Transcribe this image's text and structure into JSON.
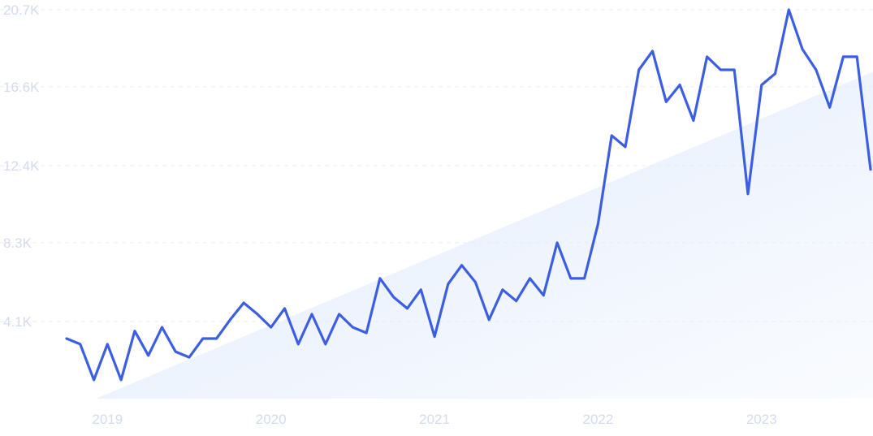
{
  "chart_data": {
    "type": "line",
    "title": "",
    "xlabel": "",
    "ylabel": "",
    "y_ticks": [
      "4.1K",
      "8.3K",
      "12.4K",
      "16.6K",
      "20.7K"
    ],
    "y_tick_values": [
      4100,
      8300,
      12400,
      16600,
      20700
    ],
    "x_ticks": [
      "2019",
      "2020",
      "2021",
      "2022",
      "2023"
    ],
    "ylim": [
      0,
      20700
    ],
    "xlim": [
      "2018-10",
      "2023-09"
    ],
    "grid": true,
    "series": [
      {
        "color": "#3b5fe0",
        "x": [
          "2018-10",
          "2018-11",
          "2018-12",
          "2019-01",
          "2019-02",
          "2019-03",
          "2019-04",
          "2019-05",
          "2019-06",
          "2019-07",
          "2019-08",
          "2019-09",
          "2019-10",
          "2019-11",
          "2019-12",
          "2020-01",
          "2020-02",
          "2020-03",
          "2020-04",
          "2020-05",
          "2020-06",
          "2020-07",
          "2020-08",
          "2020-09",
          "2020-10",
          "2020-11",
          "2020-12",
          "2021-01",
          "2021-02",
          "2021-03",
          "2021-04",
          "2021-05",
          "2021-06",
          "2021-07",
          "2021-08",
          "2021-09",
          "2021-10",
          "2021-11",
          "2021-12",
          "2022-01",
          "2022-02",
          "2022-03",
          "2022-04",
          "2022-05",
          "2022-06",
          "2022-07",
          "2022-08",
          "2022-09",
          "2022-10",
          "2022-11",
          "2022-12",
          "2023-01",
          "2023-02",
          "2023-03",
          "2023-04",
          "2023-05",
          "2023-06",
          "2023-07",
          "2023-08",
          "2023-09"
        ],
        "values": [
          3200,
          2900,
          1000,
          2900,
          1000,
          3600,
          2300,
          3800,
          2500,
          2200,
          3200,
          3200,
          4200,
          5100,
          4500,
          3800,
          4800,
          2900,
          4500,
          2900,
          4500,
          3800,
          3500,
          6400,
          5400,
          4800,
          5800,
          3300,
          6100,
          7100,
          6200,
          4200,
          5800,
          5200,
          6400,
          5500,
          8300,
          6400,
          6400,
          9300,
          14000,
          13400,
          17500,
          18500,
          15800,
          16700,
          14800,
          18200,
          17500,
          17500,
          10900,
          16700,
          17300,
          20700,
          18600,
          17500,
          15500,
          18200,
          18200,
          12200
        ]
      }
    ],
    "background_area": {
      "values_at_x_start": 0,
      "values_at_x_end": 17400,
      "color": "#dde9fb"
    }
  }
}
